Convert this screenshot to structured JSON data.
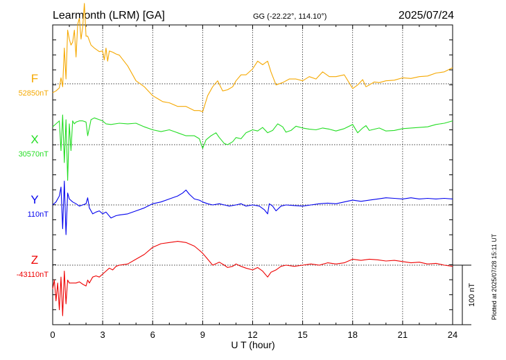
{
  "header": {
    "station": "Learmonth (LRM)  [GA]",
    "coords": "GG (-22.22°, 114.10°)",
    "date": "2025/07/24"
  },
  "footer": {
    "plotted": "Plotted at 2025/07/28 15:11 UT"
  },
  "chart_data": {
    "type": "line",
    "title": "Learmonth (LRM)  [GA]",
    "xlabel": "U T (hour)",
    "ylabel": "",
    "xlim": [
      0,
      24
    ],
    "xticks": [
      0,
      3,
      6,
      9,
      12,
      15,
      18,
      21,
      24
    ],
    "xtick_labels": [
      "0",
      "3",
      "6",
      "9",
      "12",
      "15",
      "18",
      "21",
      "24"
    ],
    "grid": true,
    "scale_bar": {
      "label": "100 nT",
      "value": 100
    },
    "series": [
      {
        "name": "F",
        "baseline_label": "52850nT",
        "baseline": 52850,
        "color": "#f5a800",
        "x": [
          0,
          0.2,
          0.4,
          0.5,
          0.6,
          0.7,
          0.8,
          0.9,
          1.0,
          1.1,
          1.2,
          1.3,
          1.4,
          1.5,
          1.6,
          1.7,
          1.8,
          1.9,
          2.0,
          2.1,
          2.3,
          2.5,
          2.8,
          3.0,
          3.1,
          3.2,
          3.3,
          3.4,
          3.6,
          3.8,
          4.0,
          4.5,
          5.0,
          5.5,
          6.0,
          6.3,
          6.6,
          7.0,
          7.5,
          8.0,
          8.5,
          8.8,
          9.0,
          9.3,
          9.6,
          9.9,
          10.2,
          10.5,
          10.8,
          11.0,
          11.3,
          11.6,
          12.0,
          12.3,
          12.6,
          12.9,
          13.1,
          13.4,
          13.8,
          14.2,
          14.6,
          15.0,
          15.4,
          15.8,
          16.2,
          16.6,
          17.0,
          17.5,
          18.0,
          18.3,
          18.6,
          18.8,
          19.0,
          19.3,
          19.6,
          20.0,
          20.5,
          21.0,
          21.5,
          22.0,
          22.5,
          23.0,
          23.5,
          24.0
        ],
        "y": [
          52835,
          52838,
          52843,
          52860,
          52845,
          52910,
          52858,
          52940,
          52925,
          52915,
          52920,
          52940,
          52895,
          52950,
          52960,
          52925,
          52945,
          52985,
          52930,
          52930,
          52915,
          52910,
          52904,
          52905,
          52890,
          52910,
          52888,
          52905,
          52903,
          52900,
          52898,
          52880,
          52855,
          52845,
          52830,
          52825,
          52820,
          52818,
          52812,
          52812,
          52805,
          52805,
          52803,
          52830,
          52845,
          52855,
          52838,
          52840,
          52845,
          52855,
          52865,
          52865,
          52875,
          52888,
          52882,
          52888,
          52870,
          52848,
          52852,
          52858,
          52858,
          52855,
          52862,
          52858,
          52870,
          52862,
          52862,
          52865,
          52842,
          52848,
          52857,
          52845,
          52848,
          52853,
          52852,
          52855,
          52856,
          52860,
          52859,
          52862,
          52863,
          52868,
          52870,
          52877
        ]
      },
      {
        "name": "X",
        "baseline_label": "30570nT",
        "baseline": 30570,
        "color": "#22dd22",
        "x": [
          0,
          0.2,
          0.4,
          0.5,
          0.6,
          0.7,
          0.8,
          0.9,
          1.0,
          1.1,
          1.2,
          1.3,
          1.4,
          1.6,
          1.8,
          2.0,
          2.1,
          2.3,
          2.5,
          2.8,
          3.0,
          3.2,
          3.5,
          4.0,
          4.5,
          5.0,
          5.5,
          6.0,
          6.5,
          7.0,
          7.5,
          8.0,
          8.5,
          8.8,
          9.0,
          9.2,
          9.5,
          9.8,
          10.0,
          10.3,
          10.5,
          10.8,
          11.0,
          11.3,
          11.6,
          12.0,
          12.3,
          12.6,
          12.9,
          13.2,
          13.5,
          13.8,
          14.0,
          14.3,
          14.6,
          15.0,
          15.4,
          15.8,
          16.2,
          16.6,
          17.0,
          17.5,
          18.0,
          18.3,
          18.6,
          18.8,
          19.0,
          19.3,
          19.6,
          20.0,
          20.5,
          21.0,
          21.5,
          22.0,
          22.5,
          23.0,
          23.5,
          24.0
        ],
        "y": [
          30600,
          30605,
          30610,
          30560,
          30620,
          30540,
          30612,
          30510,
          30605,
          30560,
          30610,
          30605,
          30608,
          30610,
          30610,
          30608,
          30585,
          30612,
          30615,
          30612,
          30610,
          30605,
          30604,
          30606,
          30605,
          30606,
          30600,
          30595,
          30592,
          30595,
          30590,
          30585,
          30585,
          30580,
          30564,
          30578,
          30585,
          30590,
          30582,
          30572,
          30570,
          30575,
          30582,
          30580,
          30590,
          30595,
          30593,
          30599,
          30590,
          30594,
          30605,
          30600,
          30591,
          30594,
          30601,
          30598,
          30596,
          30595,
          30598,
          30596,
          30593,
          30597,
          30604,
          30590,
          30598,
          30602,
          30594,
          30596,
          30598,
          30593,
          30594,
          30597,
          30598,
          30599,
          30600,
          30604,
          30606,
          30610
        ]
      },
      {
        "name": "Y",
        "baseline_label": "110nT",
        "baseline": 110,
        "color": "#0000ee",
        "x": [
          0,
          0.2,
          0.4,
          0.5,
          0.6,
          0.7,
          0.8,
          0.9,
          1.0,
          1.2,
          1.4,
          1.6,
          1.8,
          2.0,
          2.1,
          2.2,
          2.4,
          2.6,
          2.8,
          3.0,
          3.2,
          3.5,
          3.8,
          4.0,
          4.5,
          5.0,
          5.5,
          6.0,
          6.5,
          7.0,
          7.5,
          7.8,
          8.0,
          8.2,
          8.5,
          8.8,
          9.0,
          9.3,
          9.6,
          10.0,
          10.3,
          10.6,
          11.0,
          11.3,
          11.6,
          12.0,
          12.4,
          12.7,
          12.9,
          13.0,
          13.2,
          13.4,
          13.7,
          14.0,
          14.5,
          15.0,
          15.5,
          16.0,
          16.5,
          17.0,
          17.5,
          18.0,
          18.5,
          19.0,
          19.5,
          20.0,
          20.5,
          21.0,
          21.5,
          22.0,
          22.5,
          23.0,
          23.5,
          24.0
        ],
        "y": [
          110,
          115,
          125,
          140,
          70,
          150,
          60,
          130,
          120,
          115,
          112,
          108,
          110,
          112,
          122,
          105,
          95,
          98,
          100,
          95,
          98,
          88,
          92,
          93,
          95,
          100,
          105,
          112,
          115,
          120,
          125,
          130,
          135,
          128,
          120,
          118,
          115,
          112,
          110,
          112,
          110,
          108,
          110,
          112,
          108,
          110,
          108,
          102,
          95,
          112,
          108,
          100,
          108,
          110,
          109,
          108,
          110,
          112,
          113,
          112,
          115,
          118,
          116,
          118,
          120,
          122,
          121,
          120,
          122,
          120,
          121,
          120,
          121,
          120
        ]
      },
      {
        "name": "Z",
        "baseline_label": "-43110nT",
        "baseline": -43110,
        "color": "#ee0000",
        "x": [
          0,
          0.1,
          0.2,
          0.3,
          0.4,
          0.5,
          0.6,
          0.7,
          0.8,
          0.9,
          1.0,
          1.2,
          1.4,
          1.6,
          1.8,
          2.0,
          2.1,
          2.2,
          2.4,
          2.6,
          2.8,
          3.0,
          3.2,
          3.4,
          3.6,
          3.8,
          4.0,
          4.5,
          5.0,
          5.5,
          6.0,
          6.5,
          7.0,
          7.5,
          8.0,
          8.5,
          8.8,
          9.0,
          9.3,
          9.6,
          10.0,
          10.3,
          10.5,
          10.8,
          11.0,
          11.3,
          11.6,
          12.0,
          12.3,
          12.6,
          12.9,
          13.1,
          13.4,
          13.7,
          14.0,
          14.5,
          15.0,
          15.5,
          16.0,
          16.5,
          17.0,
          17.5,
          18.0,
          18.5,
          19.0,
          19.5,
          20.0,
          20.5,
          21.0,
          21.5,
          22.0,
          22.5,
          23.0,
          23.5,
          24.0
        ],
        "y": [
          -43150,
          -43135,
          -43170,
          -43140,
          -43185,
          -43130,
          -43195,
          -43120,
          -43175,
          -43135,
          -43140,
          -43140,
          -43140,
          -43138,
          -43142,
          -43145,
          -43135,
          -43140,
          -43130,
          -43128,
          -43130,
          -43125,
          -43120,
          -43115,
          -43118,
          -43112,
          -43110,
          -43108,
          -43100,
          -43092,
          -43080,
          -43074,
          -43072,
          -43070,
          -43072,
          -43078,
          -43085,
          -43090,
          -43100,
          -43110,
          -43105,
          -43110,
          -43114,
          -43112,
          -43108,
          -43112,
          -43115,
          -43118,
          -43114,
          -43120,
          -43130,
          -43122,
          -43118,
          -43112,
          -43110,
          -43112,
          -43110,
          -43108,
          -43110,
          -43106,
          -43108,
          -43106,
          -43100,
          -43102,
          -43100,
          -43101,
          -43103,
          -43102,
          -43104,
          -43106,
          -43105,
          -43108,
          -43107,
          -43110,
          -43112
        ]
      }
    ]
  }
}
